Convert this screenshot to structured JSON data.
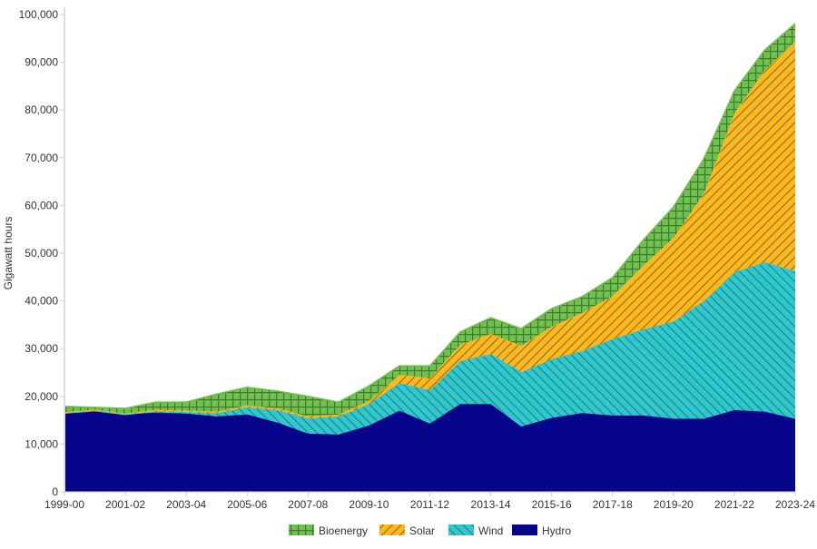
{
  "chart_data": {
    "type": "area",
    "stacked": true,
    "title": "",
    "xlabel": "",
    "ylabel": "Gigawatt hours",
    "ylim": [
      0,
      100000
    ],
    "yticks": [
      "0",
      "10,000",
      "20,000",
      "30,000",
      "40,000",
      "50,000",
      "60,000",
      "70,000",
      "80,000",
      "90,000",
      "100,000"
    ],
    "grid": false,
    "legend_position": "bottom",
    "categories": [
      "1999-00",
      "2000-01",
      "2001-02",
      "2002-03",
      "2003-04",
      "2004-05",
      "2005-06",
      "2006-07",
      "2007-08",
      "2008-09",
      "2009-10",
      "2010-11",
      "2011-12",
      "2012-13",
      "2013-14",
      "2014-15",
      "2015-16",
      "2016-17",
      "2017-18",
      "2018-19",
      "2019-20",
      "2020-21",
      "2021-22",
      "2022-23",
      "2023-24"
    ],
    "xtick_labels": [
      "1999-00",
      "2001-02",
      "2003-04",
      "2005-06",
      "2007-08",
      "2009-10",
      "2011-12",
      "2013-14",
      "2015-16",
      "2017-18",
      "2019-20",
      "2021-22",
      "2023-24"
    ],
    "series": [
      {
        "name": "Hydro",
        "color": "#07068a",
        "pattern": "solid",
        "values": [
          16500,
          17000,
          16200,
          16600,
          16400,
          15800,
          16200,
          14500,
          12200,
          12000,
          13900,
          17000,
          14300,
          18400,
          18400,
          13700,
          15500,
          16500,
          16000,
          16000,
          15300,
          15300,
          17100,
          16800,
          15300
        ]
      },
      {
        "name": "Wind",
        "color": "#2ec9cf",
        "pattern": "diagonal-forward",
        "values": [
          0,
          0,
          0,
          300,
          300,
          700,
          1500,
          2600,
          3200,
          3800,
          4500,
          5800,
          7000,
          9000,
          10500,
          11400,
          12300,
          13000,
          16000,
          18000,
          20400,
          24700,
          28900,
          31300,
          30900
        ]
      },
      {
        "name": "Solar",
        "color": "#ffb81c",
        "pattern": "diagonal-back",
        "values": [
          200,
          200,
          200,
          300,
          300,
          300,
          400,
          400,
          400,
          400,
          600,
          1700,
          2500,
          3400,
          4200,
          5500,
          6800,
          8000,
          9000,
          13300,
          17500,
          22500,
          33300,
          40300,
          48100
        ]
      },
      {
        "name": "Bioenergy",
        "color": "#6cc24a",
        "pattern": "grid",
        "values": [
          1200,
          500,
          1100,
          1600,
          1800,
          3700,
          3800,
          3600,
          4200,
          2600,
          3200,
          1900,
          2600,
          2700,
          3400,
          3600,
          3800,
          3400,
          3900,
          5400,
          6500,
          7300,
          4700,
          4200,
          3800
        ]
      }
    ],
    "legend_order": [
      "Bioenergy",
      "Solar",
      "Wind",
      "Hydro"
    ]
  }
}
